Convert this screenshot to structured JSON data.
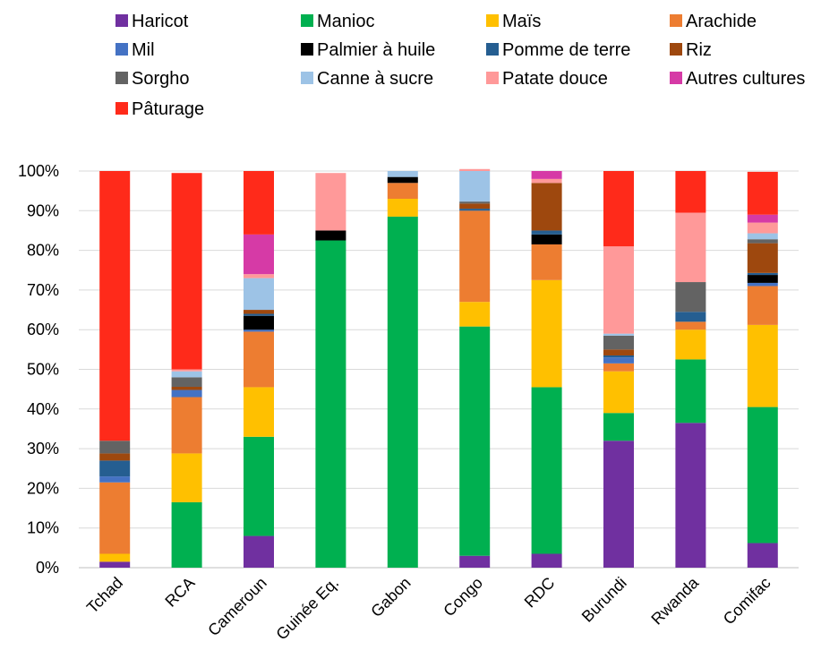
{
  "chart_data": {
    "type": "bar",
    "stacked": true,
    "title": "",
    "xlabel": "",
    "ylabel": "",
    "ylim": [
      0,
      100
    ],
    "yticks": [
      "0%",
      "10%",
      "20%",
      "30%",
      "40%",
      "50%",
      "60%",
      "70%",
      "80%",
      "90%",
      "100%"
    ],
    "grid": true,
    "legend_position": "top",
    "categories": [
      "Tchad",
      "RCA",
      "Cameroun",
      "Guinée Eq.",
      "Gabon",
      "Congo",
      "RDC",
      "Burundi",
      "Rwanda",
      "Comifac"
    ],
    "series": [
      {
        "name": "Haricot",
        "color": "#7030A0",
        "values": [
          1.5,
          0,
          8,
          0,
          0,
          3,
          3.5,
          32,
          36.5,
          6.2
        ]
      },
      {
        "name": "Manioc",
        "color": "#00B050",
        "values": [
          0,
          16.5,
          25,
          82.5,
          88.5,
          57.8,
          42,
          7,
          16,
          34.3
        ]
      },
      {
        "name": "Maïs",
        "color": "#FFC000",
        "values": [
          2,
          12.3,
          12.5,
          0,
          4.5,
          6.2,
          27,
          10.5,
          7.5,
          20.7
        ]
      },
      {
        "name": "Arachide",
        "color": "#ED7D31",
        "values": [
          18,
          14.2,
          14,
          0,
          4,
          23,
          9,
          2,
          2,
          9.8
        ]
      },
      {
        "name": "Mil",
        "color": "#4472C4",
        "values": [
          1.5,
          1.8,
          0.5,
          0,
          0,
          0,
          0,
          1.5,
          0,
          0.8
        ]
      },
      {
        "name": "Palmier à huile",
        "color": "#000000",
        "values": [
          0,
          0,
          3.5,
          2.5,
          1.5,
          0,
          2.5,
          0,
          0,
          2
        ]
      },
      {
        "name": "Pomme de terre",
        "color": "#255E91",
        "values": [
          4,
          0,
          0.5,
          0,
          0,
          0.5,
          1,
          0.5,
          2.5,
          0.5
        ]
      },
      {
        "name": "Riz",
        "color": "#9E480E",
        "values": [
          1.8,
          0.8,
          1,
          0,
          0,
          1.3,
          12,
          1.5,
          0,
          7.5
        ]
      },
      {
        "name": "Sorgho",
        "color": "#636363",
        "values": [
          3.2,
          2.4,
          0,
          0,
          0,
          0.5,
          0,
          3.5,
          7.5,
          1
        ]
      },
      {
        "name": "Canne à sucre",
        "color": "#9DC3E6",
        "values": [
          0,
          1.5,
          8,
          0,
          1.5,
          7.7,
          0,
          0.5,
          0,
          1.5
        ]
      },
      {
        "name": "Patate douce",
        "color": "#FF9999",
        "values": [
          0,
          0.5,
          1,
          14.5,
          0,
          0.5,
          1,
          22,
          17.5,
          2.7
        ]
      },
      {
        "name": "Autres cultures",
        "color": "#D63AA6",
        "values": [
          0,
          0,
          10,
          0,
          0,
          0,
          2,
          0,
          0,
          2
        ]
      },
      {
        "name": "Pâturage",
        "color": "#FF2A1A",
        "values": [
          68,
          49.5,
          16,
          0,
          0,
          0,
          0,
          19,
          10.5,
          10.8
        ]
      }
    ]
  }
}
